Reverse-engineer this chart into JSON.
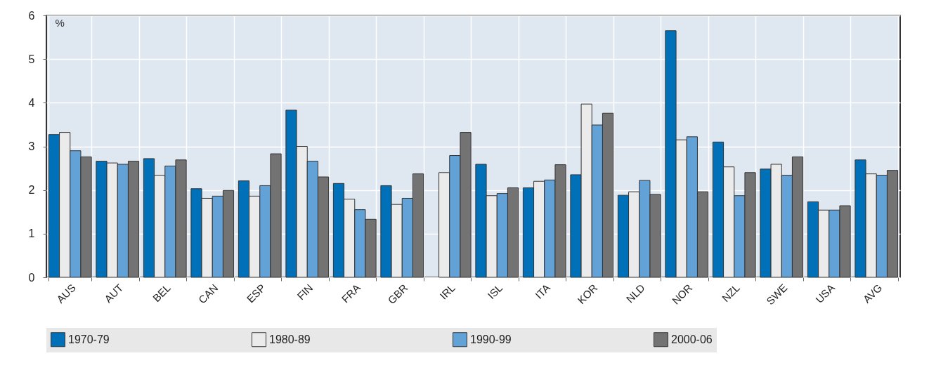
{
  "chart_data": {
    "type": "bar",
    "ylabel": "%",
    "categories": [
      "AUS",
      "AUT",
      "BEL",
      "CAN",
      "ESP",
      "FIN",
      "FRA",
      "GBR",
      "IRL",
      "ISL",
      "ITA",
      "KOR",
      "NLD",
      "NOR",
      "NZL",
      "SWE",
      "USA",
      "AVG"
    ],
    "series": [
      {
        "name": "1970-79",
        "color": "#0070b8",
        "values": [
          3.27,
          2.66,
          2.72,
          2.03,
          2.21,
          3.83,
          2.15,
          2.1,
          null,
          2.59,
          2.05,
          2.35,
          1.88,
          5.65,
          3.1,
          2.48,
          1.73,
          2.69
        ]
      },
      {
        "name": "1980-89",
        "color": "#ebebeb",
        "values": [
          3.32,
          2.62,
          2.34,
          1.81,
          1.86,
          3.0,
          1.79,
          1.67,
          2.4,
          1.87,
          2.2,
          3.97,
          1.96,
          3.15,
          2.53,
          2.59,
          1.54,
          2.37
        ]
      },
      {
        "name": "1990-99",
        "color": "#62a2d6",
        "values": [
          2.9,
          2.59,
          2.55,
          1.86,
          2.1,
          2.66,
          1.55,
          1.81,
          2.79,
          1.92,
          2.23,
          3.49,
          2.22,
          3.22,
          1.87,
          2.34,
          1.54,
          2.34
        ]
      },
      {
        "name": "2000-06",
        "color": "#737373",
        "values": [
          2.76,
          2.66,
          2.69,
          1.99,
          2.83,
          2.3,
          1.33,
          2.37,
          3.32,
          2.05,
          2.58,
          3.76,
          1.9,
          1.96,
          2.4,
          2.76,
          1.64,
          2.45
        ]
      }
    ],
    "ylim": [
      0,
      6
    ],
    "yticks": [
      0,
      1,
      2,
      3,
      4,
      5,
      6
    ],
    "grid": true,
    "legend": "bottom"
  }
}
